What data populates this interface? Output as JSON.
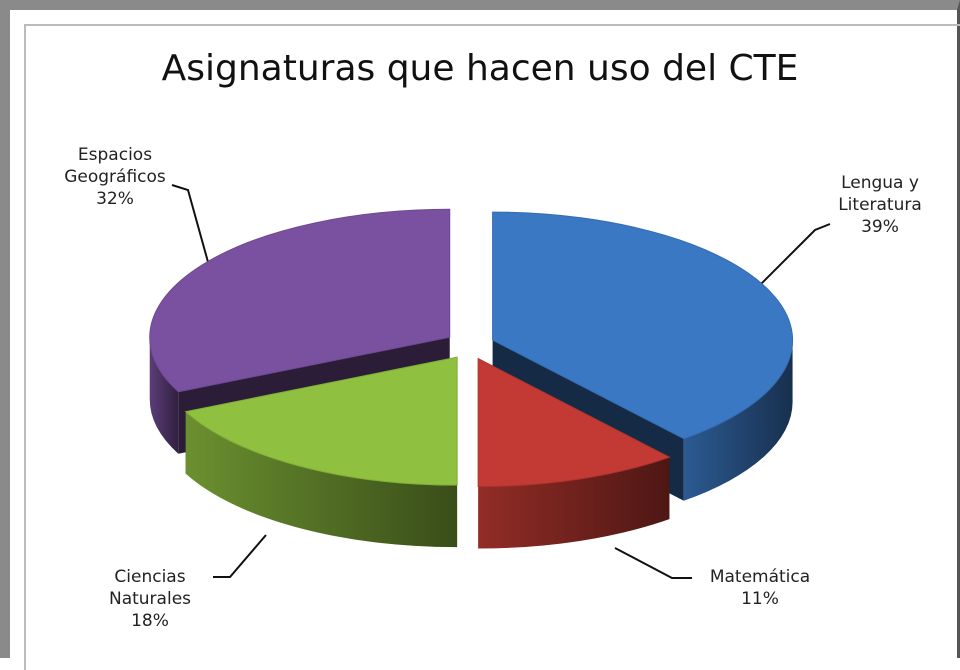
{
  "chart_data": {
    "type": "pie3d",
    "title": "Asignaturas que hacen uso del CTE",
    "categories": [
      "Lengua y Literatura",
      "Matemática",
      "Ciencias Naturales",
      "Espacios Geográficos"
    ],
    "values": [
      39,
      11,
      18,
      32
    ],
    "value_labels": [
      "39%",
      "11%",
      "18%",
      "32%"
    ],
    "colors": [
      "#3b78c4",
      "#c23a33",
      "#8fc03f",
      "#7a51a0"
    ]
  }
}
